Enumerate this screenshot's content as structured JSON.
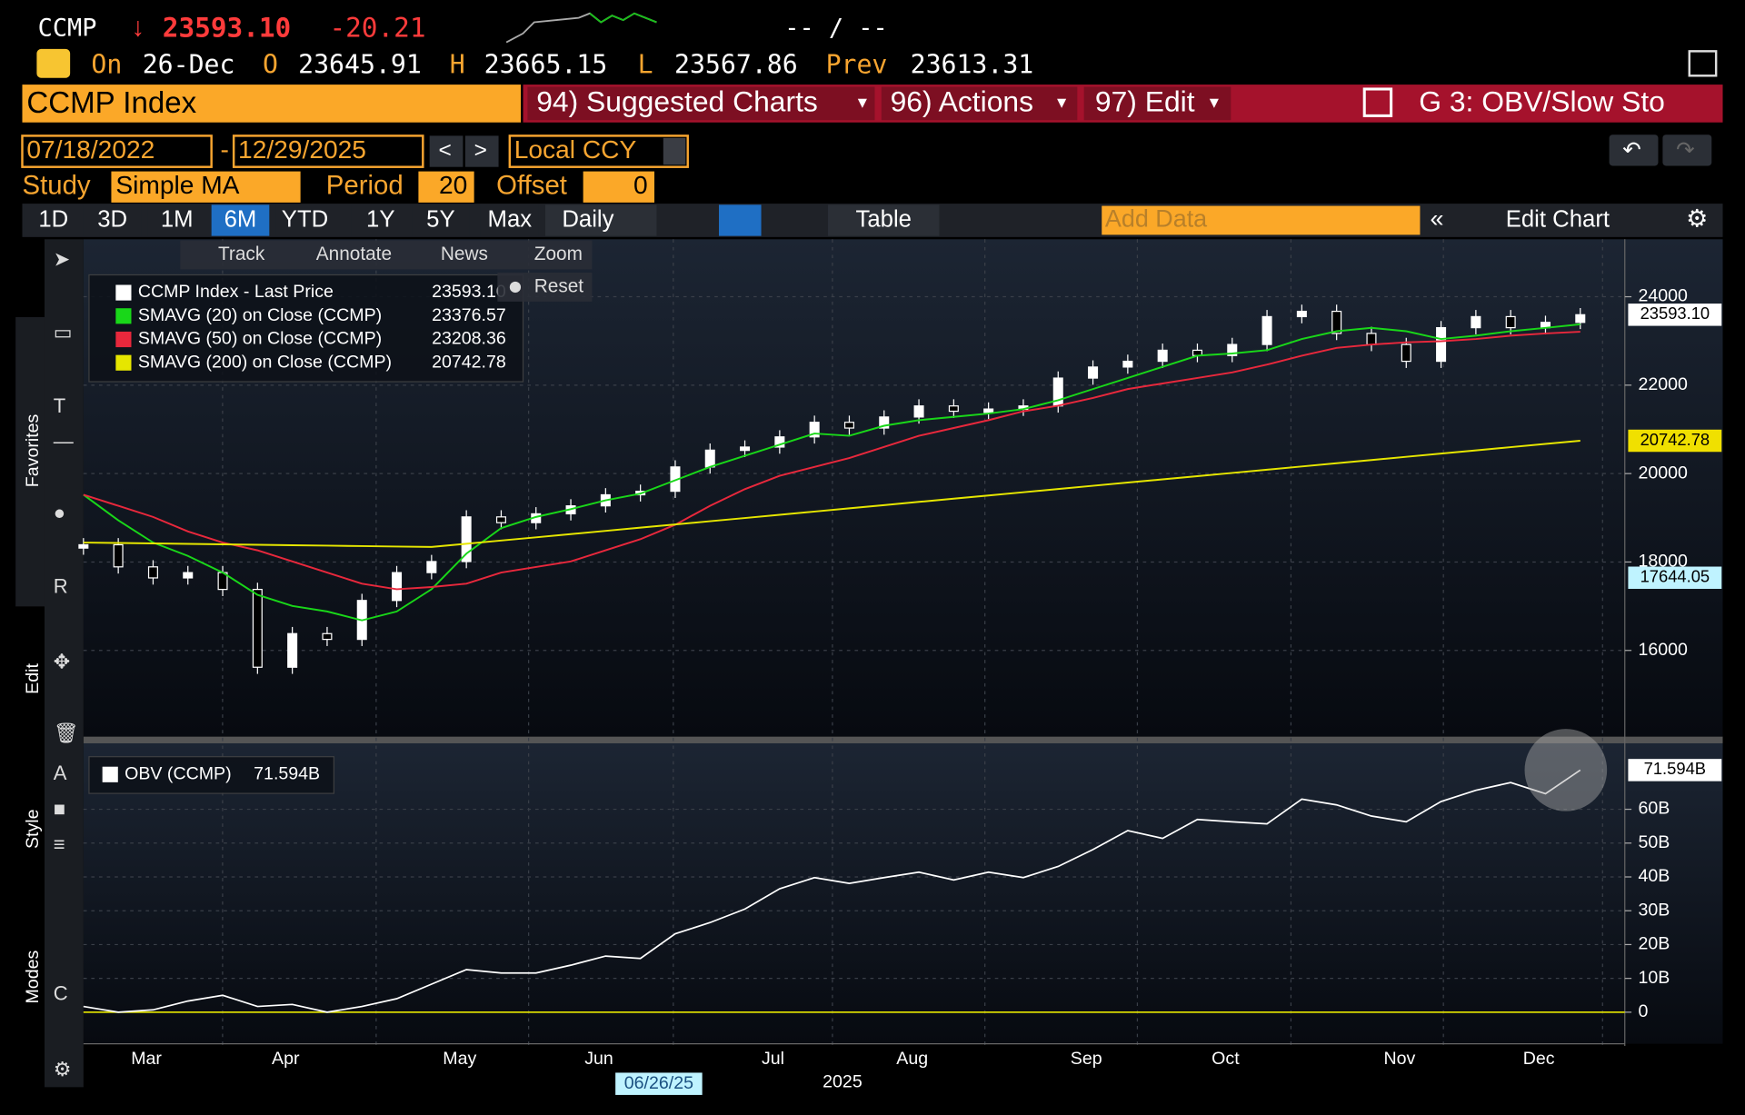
{
  "header": {
    "ticker": "CCMP",
    "last": "23593.10",
    "change": "-20.21",
    "bid_ask": "-- / --",
    "on_label": "On",
    "date": "26-Dec",
    "open_label": "O",
    "open": "23645.91",
    "high_label": "H",
    "high": "23665.15",
    "low_label": "L",
    "low": "23567.86",
    "prev_label": "Prev",
    "prev": "23613.31"
  },
  "menu": {
    "security": "CCMP Index",
    "items": [
      "94) Suggested Charts",
      "96) Actions",
      "97) Edit"
    ],
    "chart_name": "G 3: OBV/Slow Sto"
  },
  "range": {
    "start": "07/18/2022",
    "end": "12/29/2025",
    "currency": "Local CCY"
  },
  "study": {
    "label": "Study",
    "type": "Simple MA",
    "period_label": "Period",
    "period": "20",
    "offset_label": "Offset",
    "offset": "0"
  },
  "toolbar": {
    "periods": [
      "1D",
      "3D",
      "1M",
      "6M",
      "YTD",
      "1Y",
      "5Y",
      "Max"
    ],
    "active_period_index": 3,
    "frequency": "Daily",
    "table": "Table",
    "add_data": "Add Data",
    "edit_chart": "Edit Chart"
  },
  "chart_tools": [
    "Track",
    "Annotate",
    "News",
    "Zoom"
  ],
  "reset": "Reset",
  "side_labels": [
    "Favorites",
    "Edit",
    "Style",
    "Modes"
  ],
  "x_axis_note": {
    "date_tag": "06/26/25",
    "year": "2025"
  },
  "chart_data": [
    {
      "type": "candlestick",
      "categories": [
        null,
        null,
        "Mar",
        null,
        null,
        null,
        "Apr",
        null,
        null,
        null,
        null,
        "May",
        null,
        null,
        null,
        "Jun",
        null,
        null,
        null,
        null,
        "Jul",
        null,
        null,
        null,
        "Aug",
        null,
        null,
        null,
        null,
        "Sep",
        null,
        null,
        null,
        "Oct",
        null,
        null,
        null,
        null,
        "Nov",
        null,
        null,
        null,
        "Dec",
        null
      ],
      "series": [
        {
          "name": "CCMP Index - Last Price",
          "color": "#ffffff",
          "values": [
            18390,
            17890,
            17640,
            17760,
            17380,
            15620,
            16380,
            16250,
            17130,
            17760,
            18010,
            19020,
            18890,
            19090,
            19270,
            19520,
            19600,
            20150,
            20530,
            20600,
            20830,
            21160,
            21030,
            21280,
            21530,
            21410,
            21460,
            21530,
            22160,
            22410,
            22540,
            22790,
            22670,
            22920,
            23550,
            23670,
            23170,
            22920,
            22540,
            23300,
            23550,
            23300,
            23420,
            23593.1
          ]
        },
        {
          "name": "SMAVG (20)  on Close (CCMP)",
          "color": "#19d719",
          "values": [
            19522,
            18943,
            18440,
            18138,
            17761,
            17258,
            17006,
            16881,
            16680,
            16881,
            17384,
            18189,
            18767,
            19019,
            19195,
            19396,
            19547,
            19849,
            20151,
            20402,
            20654,
            20906,
            20855,
            21082,
            21208,
            21283,
            21358,
            21459,
            21660,
            21912,
            22163,
            22415,
            22667,
            22717,
            22792,
            23044,
            23220,
            23296,
            23220,
            23044,
            23119,
            23220,
            23296,
            23376.57
          ]
        },
        {
          "name": "SMAVG (50)  on Close (CCMP)",
          "color": "#e8283c",
          "values": [
            19522,
            19271,
            19019,
            18692,
            18440,
            18264,
            18013,
            17761,
            17510,
            17384,
            17434,
            17510,
            17761,
            17887,
            18013,
            18264,
            18516,
            18843,
            19271,
            19648,
            19950,
            20151,
            20352,
            20604,
            20855,
            21031,
            21208,
            21409,
            21535,
            21711,
            21912,
            22038,
            22163,
            22289,
            22465,
            22667,
            22843,
            22918,
            22969,
            22994,
            23044,
            23119,
            23170,
            23208.36
          ]
        },
        {
          "name": "SMAVG (200)  on Close (CCMP)",
          "color": "#e6e600",
          "values": [
            18440,
            18430,
            18420,
            18410,
            18400,
            18390,
            18380,
            18370,
            18360,
            18350,
            18340,
            18413,
            18486,
            18558,
            18631,
            18704,
            18777,
            18850,
            18923,
            18995,
            19068,
            19141,
            19214,
            19287,
            19360,
            19432,
            19505,
            19578,
            19651,
            19724,
            19797,
            19869,
            19942,
            20015,
            20088,
            20161,
            20234,
            20306,
            20379,
            20452,
            20525,
            20598,
            20671,
            20742.78
          ]
        }
      ],
      "ylim": [
        14100,
        25300
      ],
      "yticks": [
        16000,
        18000,
        20000,
        22000,
        24000
      ],
      "grid": true,
      "tags": [
        {
          "value": 23593.1,
          "label": "23593.10",
          "color": "#ffffff"
        },
        {
          "value": 20742.78,
          "label": "20742.78",
          "color": "#f0e000"
        },
        {
          "value": 17644.05,
          "label": "17644.05",
          "color": "#bff3ff"
        }
      ]
    },
    {
      "type": "line",
      "series": [
        {
          "name": "OBV (CCMP)",
          "color": "#ffffff",
          "values": [
            1.7,
            0,
            0.7,
            3.3,
            5,
            1.7,
            2.3,
            0,
            1.7,
            4,
            8.3,
            12.6,
            11.6,
            11.6,
            13.9,
            16.6,
            15.9,
            23.2,
            26.5,
            30.5,
            36.5,
            39.8,
            38.1,
            39.8,
            41.4,
            39.1,
            41.4,
            39.8,
            43.1,
            48.1,
            53.7,
            51.4,
            57,
            56.3,
            55.7,
            63,
            61.3,
            58,
            56.3,
            62.3,
            65.6,
            67.9,
            64.6,
            71.594
          ]
        }
      ],
      "ylim": [
        -9,
        79.5
      ],
      "yticks": [
        0,
        {
          "value": 10,
          "label": "10B"
        },
        {
          "value": 20,
          "label": "20B"
        },
        {
          "value": 30,
          "label": "30B"
        },
        {
          "value": 40,
          "label": "40B"
        },
        {
          "value": 50,
          "label": "50B"
        },
        {
          "value": 60,
          "label": "60B"
        }
      ],
      "grid": true,
      "zero_line_color": "#d8d800",
      "tags": [
        {
          "value": 71.594,
          "label": "71.594B",
          "color": "#ffffff"
        }
      ]
    }
  ]
}
